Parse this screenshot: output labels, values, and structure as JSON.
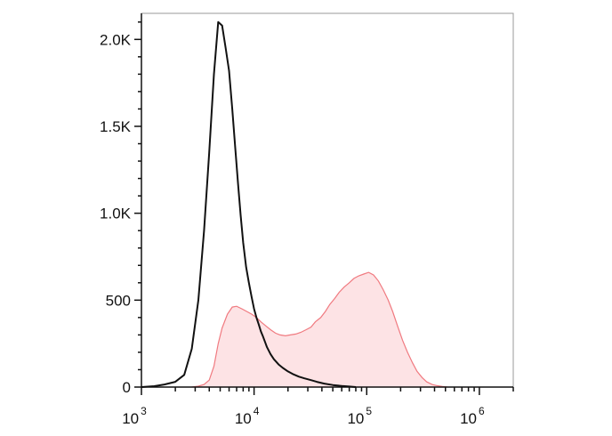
{
  "chart_data": {
    "type": "area",
    "title": "",
    "xlabel": "",
    "ylabel": "",
    "x_scale": "log",
    "xlim": [
      1000,
      2000000
    ],
    "ylim": [
      0,
      2150
    ],
    "x_ticks": [
      {
        "value": 1000,
        "base": "10",
        "exp": "3"
      },
      {
        "value": 10000,
        "base": "10",
        "exp": "4"
      },
      {
        "value": 100000,
        "base": "10",
        "exp": "5"
      },
      {
        "value": 1000000,
        "base": "10",
        "exp": "6"
      }
    ],
    "y_ticks": [
      {
        "value": 0,
        "label": "0"
      },
      {
        "value": 500,
        "label": "500"
      },
      {
        "value": 1000,
        "label": "1.0K"
      },
      {
        "value": 1500,
        "label": "1.5K"
      },
      {
        "value": 2000,
        "label": "2.0K"
      }
    ],
    "grid": false,
    "series": [
      {
        "style": "filled",
        "color": "#f07a80",
        "fill": "#fde3e5",
        "x": [
          2800,
          3200,
          3600,
          4000,
          4400,
          4800,
          5200,
          5800,
          6400,
          7000,
          7800,
          8600,
          9500,
          10500,
          11500,
          12800,
          14000,
          15500,
          17000,
          19000,
          21000,
          23500,
          26000,
          29000,
          32000,
          35000,
          39000,
          43000,
          47000,
          52000,
          57000,
          63000,
          70000,
          77000,
          85000,
          94000,
          104000,
          115000,
          127000,
          140000,
          155000,
          170000,
          188000,
          208000,
          230000,
          255000,
          280000,
          310000,
          340000,
          380000,
          420000,
          470000,
          520000
        ],
        "y": [
          0,
          5,
          15,
          40,
          120,
          250,
          340,
          420,
          460,
          465,
          450,
          435,
          420,
          400,
          375,
          350,
          330,
          310,
          300,
          295,
          300,
          305,
          315,
          330,
          345,
          375,
          400,
          435,
          475,
          510,
          545,
          575,
          600,
          625,
          640,
          650,
          660,
          645,
          610,
          560,
          500,
          435,
          350,
          270,
          200,
          140,
          90,
          55,
          30,
          15,
          8,
          3,
          0
        ]
      },
      {
        "style": "line",
        "color": "#111111",
        "x": [
          1000,
          1300,
          1600,
          2000,
          2400,
          2800,
          3200,
          3600,
          4000,
          4400,
          4800,
          5200,
          5600,
          6000,
          6400,
          6800,
          7200,
          7600,
          8000,
          8500,
          9000,
          9500,
          10000,
          10500,
          11000,
          11500,
          12000,
          12500,
          13000,
          14000,
          15000,
          16500,
          18000,
          20000,
          22000,
          25000,
          28000,
          32000,
          36000,
          42000,
          50000,
          60000,
          70000,
          80000
        ],
        "y": [
          0,
          5,
          15,
          30,
          70,
          220,
          500,
          900,
          1350,
          1800,
          2100,
          2080,
          1950,
          1820,
          1600,
          1380,
          1170,
          990,
          830,
          690,
          600,
          520,
          450,
          400,
          360,
          320,
          290,
          260,
          230,
          190,
          160,
          130,
          110,
          90,
          75,
          60,
          50,
          40,
          30,
          20,
          12,
          6,
          3,
          0
        ]
      }
    ]
  }
}
